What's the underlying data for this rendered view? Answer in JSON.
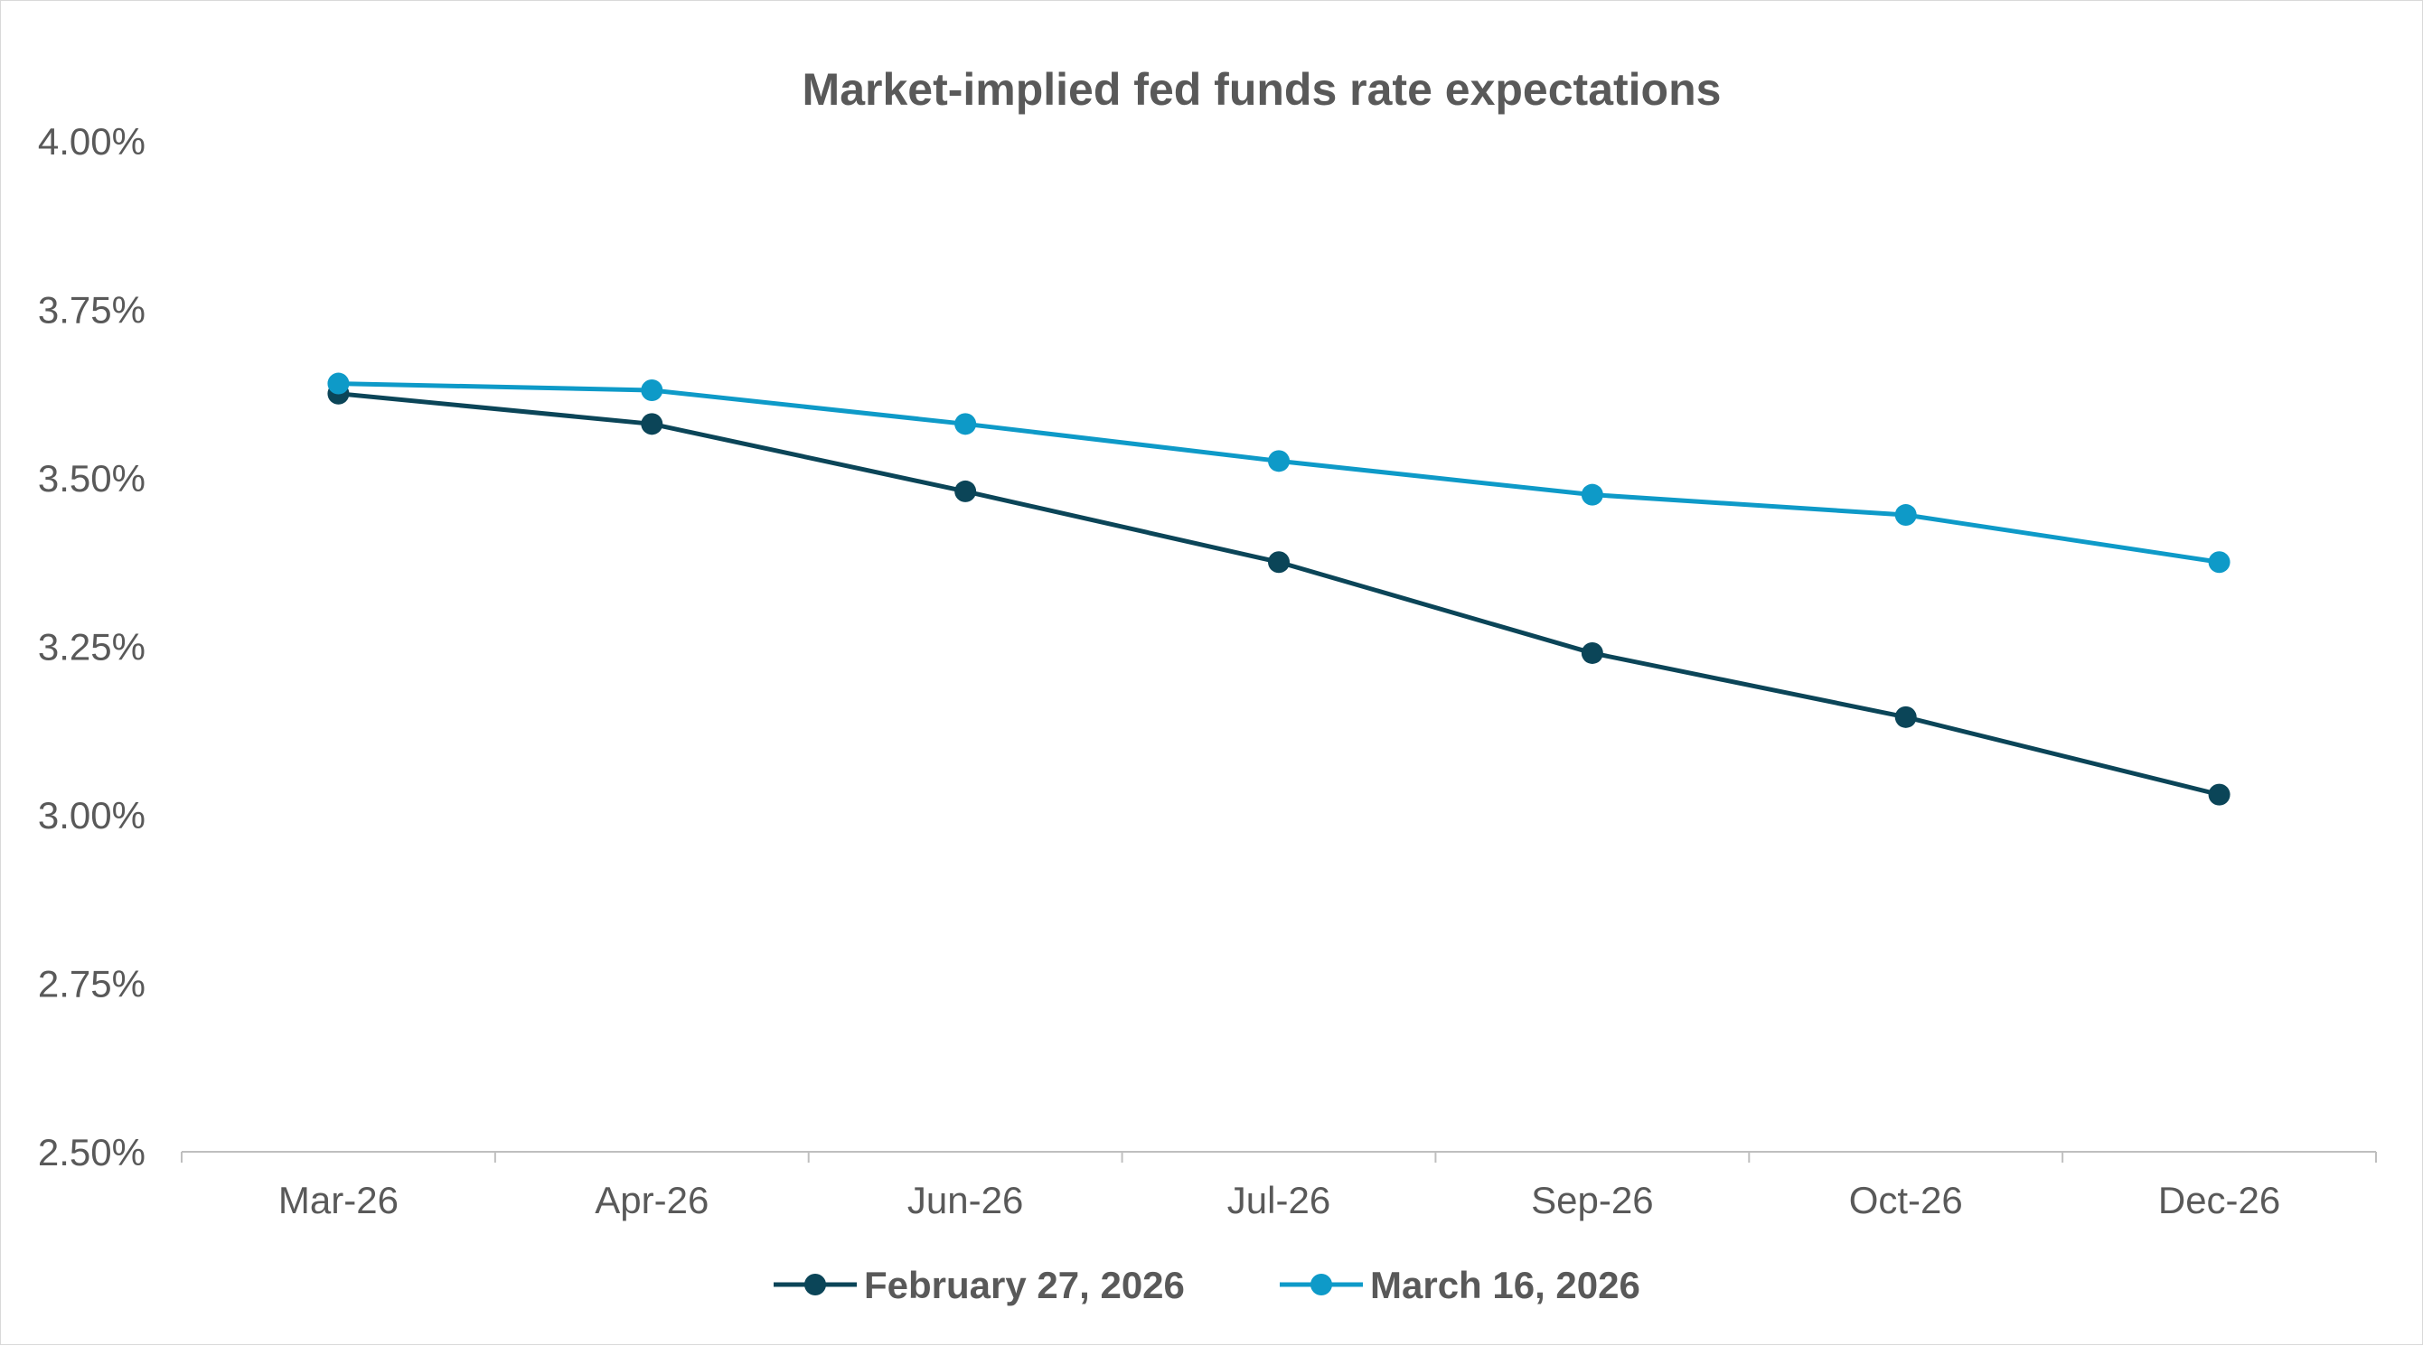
{
  "chart_data": {
    "type": "line",
    "title": "Market-implied fed funds rate expectations",
    "xlabel": "",
    "ylabel": "",
    "categories": [
      "Mar-26",
      "Apr-26",
      "Jun-26",
      "Jul-26",
      "Sep-26",
      "Oct-26",
      "Dec-26"
    ],
    "y_ticks": [
      "4.00%",
      "3.75%",
      "3.50%",
      "3.25%",
      "3.00%",
      "2.75%",
      "2.50%"
    ],
    "ylim": [
      2.5,
      4.0
    ],
    "grid": false,
    "legend_position": "bottom",
    "series": [
      {
        "name": "February 27, 2026",
        "color": "#0b4558",
        "values": [
          3.625,
          3.58,
          3.48,
          3.375,
          3.24,
          3.145,
          3.03
        ]
      },
      {
        "name": "March 16, 2026",
        "color": "#0e9ac8",
        "values": [
          3.64,
          3.63,
          3.58,
          3.525,
          3.475,
          3.445,
          3.375
        ]
      }
    ]
  }
}
